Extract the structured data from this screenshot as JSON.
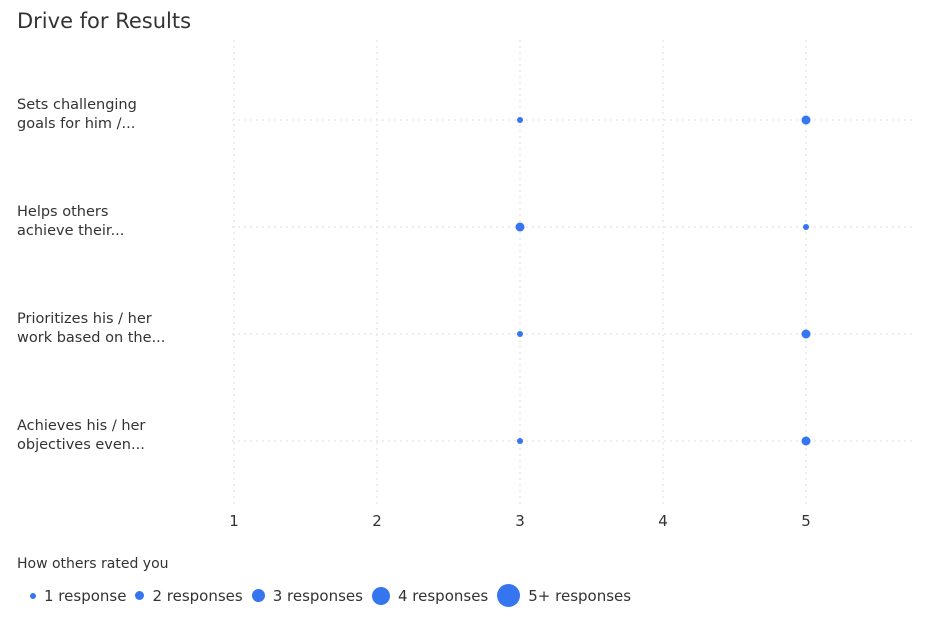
{
  "title": "Drive for Results",
  "chart_data": {
    "type": "scatter",
    "title": "Drive for Results",
    "categories": [
      "Sets challenging goals for him /...",
      "Helps others achieve their...",
      "Prioritizes his / her work based on the...",
      "Achieves his / her objectives even..."
    ],
    "category_lines": [
      [
        "Sets challenging",
        "goals for him /..."
      ],
      [
        "Helps others",
        "achieve their..."
      ],
      [
        "Prioritizes his / her",
        "work based on the..."
      ],
      [
        "Achieves his / her",
        "objectives even..."
      ]
    ],
    "xticks": [
      "1",
      "2",
      "3",
      "4",
      "5"
    ],
    "xlim": [
      1,
      5
    ],
    "grid": true,
    "color": "#3575f0",
    "points": [
      {
        "category": 0,
        "x": 3,
        "responses": 1
      },
      {
        "category": 0,
        "x": 5,
        "responses": 2
      },
      {
        "category": 1,
        "x": 3,
        "responses": 2
      },
      {
        "category": 1,
        "x": 5,
        "responses": 1
      },
      {
        "category": 2,
        "x": 3,
        "responses": 1
      },
      {
        "category": 2,
        "x": 5,
        "responses": 2
      },
      {
        "category": 3,
        "x": 3,
        "responses": 1
      },
      {
        "category": 3,
        "x": 5,
        "responses": 2
      }
    ],
    "legend": {
      "title": "How others rated you",
      "position": "bottom-left",
      "items": [
        {
          "label": "1 response",
          "responses": 1
        },
        {
          "label": "2 responses",
          "responses": 2
        },
        {
          "label": "3 responses",
          "responses": 3
        },
        {
          "label": "4 responses",
          "responses": 4
        },
        {
          "label": "5+ responses",
          "responses": 5
        }
      ]
    }
  }
}
